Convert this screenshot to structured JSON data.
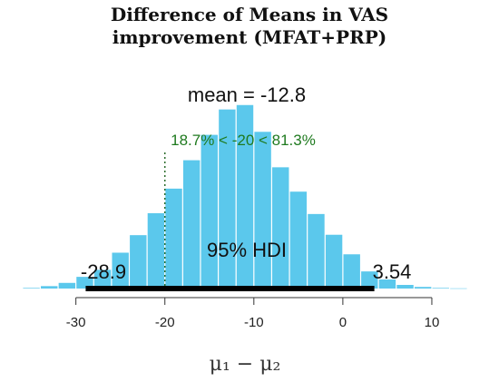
{
  "chart_data": {
    "type": "bar",
    "title_line1": "Difference of Means in VAS",
    "title_line2": "improvement (MFAT+PRP)",
    "xlabel": "μ₁ − μ₂",
    "xlim": [
      -37,
      15
    ],
    "bin_width": 2,
    "bins": [
      {
        "x": -35,
        "h": 0.003
      },
      {
        "x": -33,
        "h": 0.012
      },
      {
        "x": -31,
        "h": 0.028
      },
      {
        "x": -29,
        "h": 0.058
      },
      {
        "x": -27,
        "h": 0.093
      },
      {
        "x": -25,
        "h": 0.178
      },
      {
        "x": -23,
        "h": 0.265
      },
      {
        "x": -21,
        "h": 0.374
      },
      {
        "x": -19,
        "h": 0.496
      },
      {
        "x": -17,
        "h": 0.637
      },
      {
        "x": -15,
        "h": 0.763
      },
      {
        "x": -13,
        "h": 0.889
      },
      {
        "x": -11,
        "h": 0.911
      },
      {
        "x": -9,
        "h": 0.778
      },
      {
        "x": -7,
        "h": 0.602
      },
      {
        "x": -5,
        "h": 0.481
      },
      {
        "x": -3,
        "h": 0.37
      },
      {
        "x": -1,
        "h": 0.267
      },
      {
        "x": 1,
        "h": 0.17
      },
      {
        "x": 3,
        "h": 0.085
      },
      {
        "x": 5,
        "h": 0.045
      },
      {
        "x": 7,
        "h": 0.018
      },
      {
        "x": 9,
        "h": 0.008
      },
      {
        "x": 11,
        "h": 0.003
      },
      {
        "x": 13,
        "h": 0.001
      }
    ],
    "x_ticks": [
      -30,
      -20,
      -10,
      0,
      10
    ],
    "mean_text": "mean = -12.8",
    "comp_value": -20,
    "comp_text": "18.7% < -20 < 81.3%",
    "hdi": {
      "low": -28.9,
      "high": 3.54,
      "low_label": "-28.9",
      "high_label": "3.54",
      "label": "95% HDI"
    },
    "bar_color": "#5bc8ec",
    "comp_color": "#1f7a1f"
  }
}
